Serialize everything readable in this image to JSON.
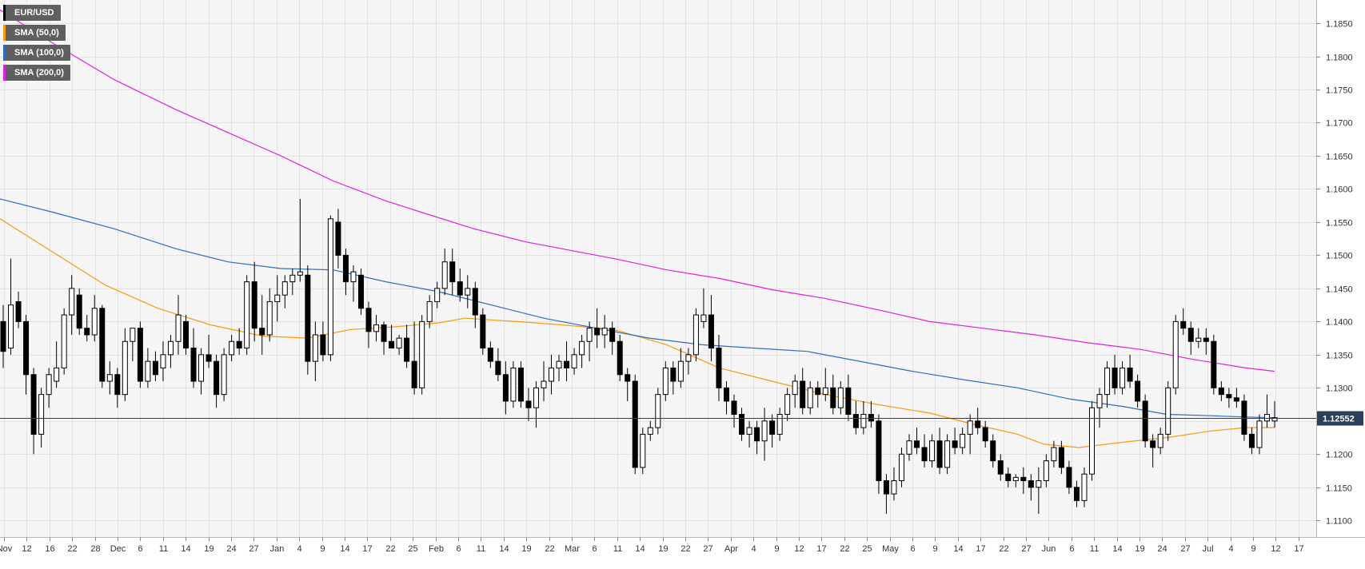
{
  "chart_data": {
    "type": "candlestick",
    "symbol": "EUR/USD",
    "timeframe": "daily",
    "last_price": "1.12552",
    "y_range": [
      1.1075,
      1.1885
    ],
    "y_ticks": [
      "1.1850",
      "1.1800",
      "1.1750",
      "1.1700",
      "1.1650",
      "1.1600",
      "1.1550",
      "1.1500",
      "1.1450",
      "1.1400",
      "1.1350",
      "1.1300",
      "1.1250",
      "1.1200",
      "1.1150",
      "1.1100"
    ],
    "x_ticks": [
      "Nov",
      "12",
      "16",
      "22",
      "28",
      "Dec",
      "6",
      "11",
      "14",
      "19",
      "24",
      "27",
      "Jan",
      "4",
      "9",
      "14",
      "17",
      "22",
      "25",
      "Feb",
      "6",
      "11",
      "14",
      "19",
      "22",
      "Mar",
      "6",
      "11",
      "14",
      "19",
      "22",
      "27",
      "Apr",
      "4",
      "9",
      "12",
      "17",
      "22",
      "25",
      "May",
      "6",
      "9",
      "14",
      "17",
      "22",
      "27",
      "Jun",
      "6",
      "11",
      "14",
      "19",
      "24",
      "27",
      "Jul",
      "4",
      "9",
      "12",
      "17"
    ],
    "legend": [
      {
        "label": "EUR/USD",
        "color": "#000000"
      },
      {
        "label": "SMA (50,0)",
        "color": "#f39c12"
      },
      {
        "label": "SMA (100,0)",
        "color": "#2e6cc0"
      },
      {
        "label": "SMA (200,0)",
        "color": "#e020e0"
      }
    ],
    "series": [
      {
        "name": "SMA (50,0)",
        "color": "#f39c12",
        "points": [
          [
            0,
            1.1555
          ],
          [
            60,
            1.1505
          ],
          [
            120,
            1.1455
          ],
          [
            180,
            1.142
          ],
          [
            240,
            1.1395
          ],
          [
            300,
            1.1378
          ],
          [
            350,
            1.1375
          ],
          [
            400,
            1.1388
          ],
          [
            450,
            1.1392
          ],
          [
            500,
            1.1398
          ],
          [
            530,
            1.1405
          ],
          [
            590,
            1.14
          ],
          [
            640,
            1.1395
          ],
          [
            700,
            1.1388
          ],
          [
            760,
            1.1365
          ],
          [
            820,
            1.133
          ],
          [
            880,
            1.131
          ],
          [
            940,
            1.129
          ],
          [
            1000,
            1.1275
          ],
          [
            1060,
            1.1262
          ],
          [
            1110,
            1.1245
          ],
          [
            1160,
            1.123
          ],
          [
            1190,
            1.1215
          ],
          [
            1230,
            1.121
          ],
          [
            1280,
            1.1218
          ],
          [
            1330,
            1.1225
          ],
          [
            1380,
            1.1235
          ],
          [
            1420,
            1.124
          ],
          [
            1453,
            1.124
          ]
        ]
      },
      {
        "name": "SMA (100,0)",
        "color": "#2e6cc0",
        "points": [
          [
            0,
            1.1585
          ],
          [
            60,
            1.1565
          ],
          [
            130,
            1.154
          ],
          [
            200,
            1.151
          ],
          [
            260,
            1.149
          ],
          [
            320,
            1.148
          ],
          [
            380,
            1.1478
          ],
          [
            440,
            1.146
          ],
          [
            500,
            1.1445
          ],
          [
            560,
            1.1425
          ],
          [
            620,
            1.1405
          ],
          [
            680,
            1.139
          ],
          [
            740,
            1.1375
          ],
          [
            800,
            1.1365
          ],
          [
            860,
            1.136
          ],
          [
            920,
            1.1355
          ],
          [
            980,
            1.134
          ],
          [
            1040,
            1.1325
          ],
          [
            1100,
            1.1312
          ],
          [
            1160,
            1.13
          ],
          [
            1220,
            1.1283
          ],
          [
            1280,
            1.1272
          ],
          [
            1330,
            1.126
          ],
          [
            1380,
            1.1258
          ],
          [
            1420,
            1.1256
          ],
          [
            1453,
            1.1255
          ]
        ]
      },
      {
        "name": "SMA (200,0)",
        "color": "#e020e0",
        "points": [
          [
            0,
            1.187
          ],
          [
            60,
            1.182
          ],
          [
            130,
            1.1765
          ],
          [
            200,
            1.172
          ],
          [
            260,
            1.1685
          ],
          [
            320,
            1.165
          ],
          [
            380,
            1.1612
          ],
          [
            440,
            1.1582
          ],
          [
            480,
            1.1565
          ],
          [
            540,
            1.154
          ],
          [
            600,
            1.152
          ],
          [
            660,
            1.1505
          ],
          [
            700,
            1.1495
          ],
          [
            760,
            1.1478
          ],
          [
            820,
            1.1465
          ],
          [
            880,
            1.1448
          ],
          [
            940,
            1.1435
          ],
          [
            1000,
            1.1418
          ],
          [
            1060,
            1.14
          ],
          [
            1120,
            1.139
          ],
          [
            1180,
            1.138
          ],
          [
            1240,
            1.1368
          ],
          [
            1300,
            1.1358
          ],
          [
            1360,
            1.1343
          ],
          [
            1420,
            1.133
          ],
          [
            1453,
            1.1325
          ]
        ]
      }
    ],
    "candles": [
      [
        1.14,
        1.1425,
        1.133,
        1.1355
      ],
      [
        1.136,
        1.1495,
        1.135,
        1.1425
      ],
      [
        1.143,
        1.1445,
        1.139,
        1.14
      ],
      [
        1.14,
        1.141,
        1.129,
        1.132
      ],
      [
        1.132,
        1.133,
        1.12,
        1.123
      ],
      [
        1.123,
        1.13,
        1.121,
        1.129
      ],
      [
        1.129,
        1.133,
        1.127,
        1.132
      ],
      [
        1.131,
        1.137,
        1.13,
        1.133
      ],
      [
        1.133,
        1.142,
        1.132,
        1.141
      ],
      [
        1.141,
        1.147,
        1.138,
        1.145
      ],
      [
        1.144,
        1.145,
        1.138,
        1.139
      ],
      [
        1.139,
        1.141,
        1.137,
        1.138
      ],
      [
        1.138,
        1.144,
        1.137,
        1.142
      ],
      [
        1.142,
        1.1425,
        1.13,
        1.131
      ],
      [
        1.131,
        1.134,
        1.129,
        1.132
      ],
      [
        1.132,
        1.133,
        1.127,
        1.129
      ],
      [
        1.129,
        1.139,
        1.128,
        1.137
      ],
      [
        1.137,
        1.139,
        1.134,
        1.139
      ],
      [
        1.139,
        1.14,
        1.13,
        1.131
      ],
      [
        1.131,
        1.136,
        1.13,
        1.134
      ],
      [
        1.134,
        1.1355,
        1.131,
        1.132
      ],
      [
        1.133,
        1.137,
        1.131,
        1.135
      ],
      [
        1.135,
        1.138,
        1.133,
        1.137
      ],
      [
        1.137,
        1.144,
        1.135,
        1.141
      ],
      [
        1.14,
        1.141,
        1.135,
        1.136
      ],
      [
        1.136,
        1.139,
        1.13,
        1.131
      ],
      [
        1.131,
        1.136,
        1.129,
        1.135
      ],
      [
        1.135,
        1.138,
        1.133,
        1.134
      ],
      [
        1.134,
        1.135,
        1.127,
        1.129
      ],
      [
        1.129,
        1.136,
        1.128,
        1.135
      ],
      [
        1.135,
        1.138,
        1.134,
        1.137
      ],
      [
        1.137,
        1.139,
        1.135,
        1.136
      ],
      [
        1.136,
        1.147,
        1.135,
        1.146
      ],
      [
        1.146,
        1.149,
        1.137,
        1.139
      ],
      [
        1.139,
        1.144,
        1.135,
        1.138
      ],
      [
        1.138,
        1.145,
        1.137,
        1.143
      ],
      [
        1.143,
        1.147,
        1.14,
        1.144
      ],
      [
        1.144,
        1.147,
        1.142,
        1.146
      ],
      [
        1.146,
        1.148,
        1.144,
        1.147
      ],
      [
        1.147,
        1.1585,
        1.146,
        1.1475
      ],
      [
        1.147,
        1.1485,
        1.132,
        1.134
      ],
      [
        1.134,
        1.14,
        1.131,
        1.138
      ],
      [
        1.138,
        1.14,
        1.134,
        1.135
      ],
      [
        1.135,
        1.156,
        1.134,
        1.1555
      ],
      [
        1.155,
        1.157,
        1.148,
        1.15
      ],
      [
        1.15,
        1.151,
        1.144,
        1.146
      ],
      [
        1.146,
        1.1485,
        1.143,
        1.1475
      ],
      [
        1.147,
        1.148,
        1.141,
        1.142
      ],
      [
        1.142,
        1.143,
        1.136,
        1.1385
      ],
      [
        1.1385,
        1.141,
        1.137,
        1.1395
      ],
      [
        1.1395,
        1.14,
        1.135,
        1.137
      ],
      [
        1.137,
        1.1395,
        1.136,
        1.136
      ],
      [
        1.136,
        1.138,
        1.135,
        1.1375
      ],
      [
        1.1375,
        1.1395,
        1.133,
        1.134
      ],
      [
        1.134,
        1.14,
        1.129,
        1.13
      ],
      [
        1.13,
        1.141,
        1.129,
        1.14
      ],
      [
        1.14,
        1.144,
        1.139,
        1.143
      ],
      [
        1.143,
        1.146,
        1.142,
        1.145
      ],
      [
        1.145,
        1.151,
        1.144,
        1.149
      ],
      [
        1.149,
        1.151,
        1.144,
        1.146
      ],
      [
        1.146,
        1.148,
        1.143,
        1.144
      ],
      [
        1.144,
        1.147,
        1.142,
        1.145
      ],
      [
        1.145,
        1.146,
        1.139,
        1.141
      ],
      [
        1.141,
        1.142,
        1.135,
        1.136
      ],
      [
        1.136,
        1.137,
        1.133,
        1.134
      ],
      [
        1.134,
        1.136,
        1.131,
        1.132
      ],
      [
        1.132,
        1.134,
        1.126,
        1.128
      ],
      [
        1.128,
        1.134,
        1.127,
        1.133
      ],
      [
        1.133,
        1.134,
        1.127,
        1.128
      ],
      [
        1.128,
        1.13,
        1.125,
        1.127
      ],
      [
        1.127,
        1.131,
        1.124,
        1.13
      ],
      [
        1.13,
        1.134,
        1.128,
        1.131
      ],
      [
        1.131,
        1.135,
        1.129,
        1.133
      ],
      [
        1.133,
        1.135,
        1.131,
        1.134
      ],
      [
        1.134,
        1.137,
        1.131,
        1.133
      ],
      [
        1.133,
        1.136,
        1.132,
        1.135
      ],
      [
        1.135,
        1.138,
        1.133,
        1.137
      ],
      [
        1.137,
        1.14,
        1.134,
        1.139
      ],
      [
        1.139,
        1.142,
        1.136,
        1.138
      ],
      [
        1.138,
        1.141,
        1.136,
        1.139
      ],
      [
        1.139,
        1.14,
        1.135,
        1.137
      ],
      [
        1.137,
        1.138,
        1.131,
        1.132
      ],
      [
        1.132,
        1.133,
        1.128,
        1.131
      ],
      [
        1.131,
        1.132,
        1.117,
        1.118
      ],
      [
        1.118,
        1.124,
        1.117,
        1.123
      ],
      [
        1.123,
        1.125,
        1.122,
        1.124
      ],
      [
        1.124,
        1.13,
        1.123,
        1.129
      ],
      [
        1.129,
        1.134,
        1.128,
        1.133
      ],
      [
        1.133,
        1.134,
        1.129,
        1.131
      ],
      [
        1.131,
        1.136,
        1.13,
        1.134
      ],
      [
        1.134,
        1.136,
        1.132,
        1.135
      ],
      [
        1.135,
        1.142,
        1.134,
        1.141
      ],
      [
        1.14,
        1.145,
        1.139,
        1.141
      ],
      [
        1.141,
        1.144,
        1.134,
        1.136
      ],
      [
        1.136,
        1.138,
        1.128,
        1.13
      ],
      [
        1.13,
        1.131,
        1.126,
        1.128
      ],
      [
        1.128,
        1.129,
        1.124,
        1.126
      ],
      [
        1.126,
        1.127,
        1.122,
        1.123
      ],
      [
        1.123,
        1.125,
        1.121,
        1.124
      ],
      [
        1.124,
        1.125,
        1.12,
        1.122
      ],
      [
        1.122,
        1.127,
        1.119,
        1.125
      ],
      [
        1.125,
        1.126,
        1.121,
        1.123
      ],
      [
        1.123,
        1.127,
        1.122,
        1.126
      ],
      [
        1.126,
        1.13,
        1.125,
        1.129
      ],
      [
        1.129,
        1.132,
        1.127,
        1.131
      ],
      [
        1.131,
        1.133,
        1.126,
        1.127
      ],
      [
        1.127,
        1.131,
        1.126,
        1.13
      ],
      [
        1.13,
        1.131,
        1.127,
        1.129
      ],
      [
        1.129,
        1.133,
        1.128,
        1.13
      ],
      [
        1.13,
        1.132,
        1.126,
        1.127
      ],
      [
        1.127,
        1.131,
        1.126,
        1.13
      ],
      [
        1.13,
        1.132,
        1.125,
        1.126
      ],
      [
        1.126,
        1.128,
        1.123,
        1.124
      ],
      [
        1.124,
        1.128,
        1.123,
        1.126
      ],
      [
        1.126,
        1.128,
        1.124,
        1.125
      ],
      [
        1.125,
        1.126,
        1.114,
        1.116
      ],
      [
        1.116,
        1.117,
        1.111,
        1.114
      ],
      [
        1.114,
        1.118,
        1.113,
        1.116
      ],
      [
        1.116,
        1.121,
        1.115,
        1.12
      ],
      [
        1.12,
        1.123,
        1.119,
        1.122
      ],
      [
        1.122,
        1.124,
        1.12,
        1.121
      ],
      [
        1.121,
        1.123,
        1.118,
        1.119
      ],
      [
        1.119,
        1.123,
        1.118,
        1.122
      ],
      [
        1.122,
        1.124,
        1.117,
        1.118
      ],
      [
        1.118,
        1.123,
        1.117,
        1.122
      ],
      [
        1.122,
        1.124,
        1.12,
        1.121
      ],
      [
        1.121,
        1.124,
        1.12,
        1.123
      ],
      [
        1.123,
        1.126,
        1.12,
        1.125
      ],
      [
        1.125,
        1.127,
        1.123,
        1.124
      ],
      [
        1.124,
        1.125,
        1.121,
        1.122
      ],
      [
        1.122,
        1.123,
        1.118,
        1.119
      ],
      [
        1.119,
        1.12,
        1.116,
        1.117
      ],
      [
        1.117,
        1.118,
        1.115,
        1.116
      ],
      [
        1.116,
        1.117,
        1.115,
        1.1165
      ],
      [
        1.1165,
        1.118,
        1.114,
        1.116
      ],
      [
        1.116,
        1.117,
        1.113,
        1.115
      ],
      [
        1.115,
        1.118,
        1.111,
        1.116
      ],
      [
        1.116,
        1.12,
        1.115,
        1.119
      ],
      [
        1.119,
        1.122,
        1.118,
        1.121
      ],
      [
        1.121,
        1.122,
        1.117,
        1.118
      ],
      [
        1.118,
        1.119,
        1.114,
        1.115
      ],
      [
        1.115,
        1.116,
        1.112,
        1.113
      ],
      [
        1.113,
        1.118,
        1.112,
        1.117
      ],
      [
        1.117,
        1.128,
        1.116,
        1.127
      ],
      [
        1.127,
        1.13,
        1.124,
        1.129
      ],
      [
        1.129,
        1.134,
        1.127,
        1.133
      ],
      [
        1.133,
        1.135,
        1.129,
        1.13
      ],
      [
        1.13,
        1.134,
        1.129,
        1.133
      ],
      [
        1.133,
        1.135,
        1.13,
        1.131
      ],
      [
        1.131,
        1.132,
        1.127,
        1.128
      ],
      [
        1.128,
        1.129,
        1.121,
        1.122
      ],
      [
        1.122,
        1.123,
        1.118,
        1.121
      ],
      [
        1.121,
        1.124,
        1.12,
        1.123
      ],
      [
        1.123,
        1.131,
        1.122,
        1.13
      ],
      [
        1.13,
        1.141,
        1.129,
        1.14
      ],
      [
        1.14,
        1.142,
        1.138,
        1.139
      ],
      [
        1.139,
        1.14,
        1.135,
        1.137
      ],
      [
        1.137,
        1.139,
        1.136,
        1.1375
      ],
      [
        1.1375,
        1.139,
        1.135,
        1.137
      ],
      [
        1.137,
        1.138,
        1.129,
        1.13
      ],
      [
        1.13,
        1.131,
        1.128,
        1.129
      ],
      [
        1.129,
        1.13,
        1.127,
        1.1285
      ],
      [
        1.1285,
        1.13,
        1.127,
        1.128
      ],
      [
        1.128,
        1.129,
        1.122,
        1.123
      ],
      [
        1.123,
        1.124,
        1.12,
        1.121
      ],
      [
        1.121,
        1.126,
        1.12,
        1.125
      ],
      [
        1.125,
        1.129,
        1.124,
        1.126
      ],
      [
        1.125,
        1.128,
        1.124,
        1.1255
      ]
    ]
  }
}
